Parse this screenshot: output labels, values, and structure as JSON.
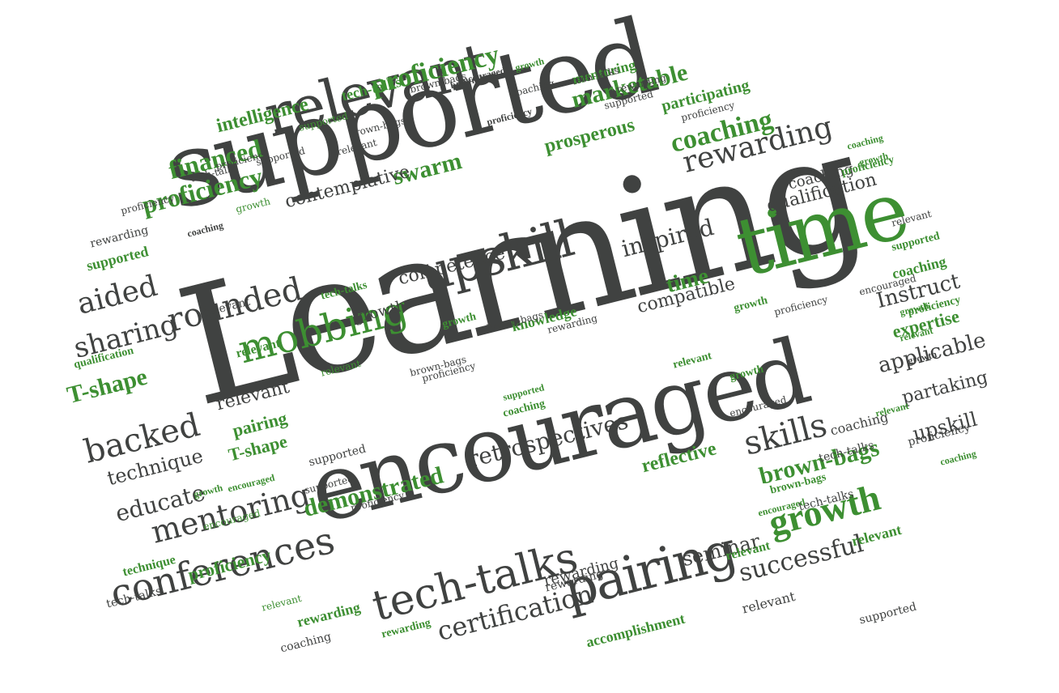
{
  "colors": {
    "dark": "#404241",
    "green": "#3d8f32"
  },
  "words": [
    {
      "text": "Learning",
      "c": "dark"
    },
    {
      "text": "supported",
      "c": "dark"
    },
    {
      "text": "encouraged",
      "c": "dark"
    },
    {
      "text": "relevant",
      "c": "dark"
    },
    {
      "text": "time",
      "c": "green"
    },
    {
      "text": "upskill",
      "c": "dark"
    },
    {
      "text": "pairing",
      "c": "dark"
    },
    {
      "text": "tech-talks",
      "c": "dark"
    },
    {
      "text": "mobbing",
      "c": "green"
    },
    {
      "text": "conferences",
      "c": "dark"
    },
    {
      "text": "rounded",
      "c": "dark"
    },
    {
      "text": "sharing",
      "c": "dark"
    },
    {
      "text": "backed",
      "c": "dark"
    },
    {
      "text": "aided",
      "c": "dark"
    },
    {
      "text": "mentoring",
      "c": "dark"
    },
    {
      "text": "growth",
      "c": "green"
    },
    {
      "text": "brown-bags",
      "c": "green"
    },
    {
      "text": "skills",
      "c": "dark"
    },
    {
      "text": "successful",
      "c": "dark"
    },
    {
      "text": "retrospectives",
      "c": "dark"
    },
    {
      "text": "demonstrated",
      "c": "green"
    },
    {
      "text": "certification",
      "c": "dark"
    },
    {
      "text": "rewarding",
      "c": "dark"
    },
    {
      "text": "proficiency",
      "c": "green"
    },
    {
      "text": "financed",
      "c": "green"
    },
    {
      "text": "proficiency",
      "c": "green"
    },
    {
      "text": "swarm",
      "c": "green"
    },
    {
      "text": "coaching",
      "c": "green"
    },
    {
      "text": "marketable",
      "c": "green"
    },
    {
      "text": "prosperous",
      "c": "green"
    },
    {
      "text": "intelligence",
      "c": "green"
    },
    {
      "text": "contemplative",
      "c": "dark"
    },
    {
      "text": "qualification",
      "c": "dark"
    },
    {
      "text": "inspired",
      "c": "dark"
    },
    {
      "text": "competence",
      "c": "dark"
    },
    {
      "text": "compatible",
      "c": "dark"
    },
    {
      "text": "Instruct",
      "c": "dark"
    },
    {
      "text": "expertise",
      "c": "green"
    },
    {
      "text": "applicable",
      "c": "dark"
    },
    {
      "text": "partaking",
      "c": "dark"
    },
    {
      "text": "upskill",
      "c": "dark"
    },
    {
      "text": "T-shape",
      "c": "green"
    },
    {
      "text": "technique",
      "c": "dark"
    },
    {
      "text": "educate",
      "c": "dark"
    },
    {
      "text": "knowledge",
      "c": "green"
    },
    {
      "text": "reflective",
      "c": "green"
    },
    {
      "text": "seminar",
      "c": "dark"
    },
    {
      "text": "accomplishment",
      "c": "green"
    },
    {
      "text": "proficiency",
      "c": "green"
    },
    {
      "text": "technique",
      "c": "green"
    },
    {
      "text": "relevant",
      "c": "dark"
    },
    {
      "text": "pairing",
      "c": "green"
    },
    {
      "text": "T-shape",
      "c": "green"
    },
    {
      "text": "supported",
      "c": "green"
    },
    {
      "text": "rewarding",
      "c": "dark"
    },
    {
      "text": "mentoring",
      "c": "green"
    },
    {
      "text": "participating",
      "c": "green"
    },
    {
      "text": "tech-talks",
      "c": "green"
    },
    {
      "text": "qualification",
      "c": "green"
    },
    {
      "text": "coaching",
      "c": "dark"
    },
    {
      "text": "proficiency",
      "c": "dark"
    },
    {
      "text": "rewarding",
      "c": "dark"
    },
    {
      "text": "relevant",
      "c": "green"
    },
    {
      "text": "relevant",
      "c": "dark"
    },
    {
      "text": "growth",
      "c": "green"
    },
    {
      "text": "growth",
      "c": "dark"
    },
    {
      "text": "relevant",
      "c": "green"
    },
    {
      "text": "coaching",
      "c": "green"
    },
    {
      "text": "encouraged",
      "c": "dark"
    },
    {
      "text": "growth",
      "c": "green"
    },
    {
      "text": "time",
      "c": "green"
    },
    {
      "text": "rewarding",
      "c": "green"
    },
    {
      "text": "tech-talks",
      "c": "dark"
    },
    {
      "text": "supported",
      "c": "dark"
    },
    {
      "text": "coaching",
      "c": "dark"
    },
    {
      "text": "brown-bags",
      "c": "green"
    },
    {
      "text": "tech-talks",
      "c": "dark"
    },
    {
      "text": "relevant",
      "c": "green"
    },
    {
      "text": "relevant",
      "c": "dark"
    },
    {
      "text": "encouraged",
      "c": "green"
    },
    {
      "text": "relevant",
      "c": "green"
    },
    {
      "text": "tech-talks",
      "c": "green"
    },
    {
      "text": "supported",
      "c": "dark"
    },
    {
      "text": "proficiency",
      "c": "dark"
    },
    {
      "text": "encouraged",
      "c": "green"
    },
    {
      "text": "brown-bags",
      "c": "dark"
    },
    {
      "text": "proficiency",
      "c": "dark"
    },
    {
      "text": "coaching",
      "c": "green"
    },
    {
      "text": "supported",
      "c": "green"
    },
    {
      "text": "rewarding",
      "c": "dark"
    },
    {
      "text": "encouraged",
      "c": "dark"
    },
    {
      "text": "growth",
      "c": "green"
    },
    {
      "text": "supported",
      "c": "green"
    },
    {
      "text": "coaching",
      "c": "dark"
    },
    {
      "text": "rewarding",
      "c": "dark"
    },
    {
      "text": "proficiency",
      "c": "green"
    },
    {
      "text": "coaching",
      "c": "green"
    },
    {
      "text": "growth",
      "c": "green"
    },
    {
      "text": "relevant",
      "c": "dark"
    },
    {
      "text": "growth",
      "c": "green"
    },
    {
      "text": "proficiency",
      "c": "dark"
    },
    {
      "text": "tech-talks",
      "c": "dark"
    },
    {
      "text": "relevant",
      "c": "green"
    },
    {
      "text": "rewarding",
      "c": "green"
    },
    {
      "text": "supported",
      "c": "dark"
    },
    {
      "text": "growth",
      "c": "dark"
    },
    {
      "text": "relevant",
      "c": "green"
    },
    {
      "text": "proficiency",
      "c": "green"
    },
    {
      "text": "coaching",
      "c": "green"
    },
    {
      "text": "growth",
      "c": "green"
    },
    {
      "text": "supported",
      "c": "green"
    },
    {
      "text": "relevant",
      "c": "dark"
    },
    {
      "text": "proficiency",
      "c": "dark"
    },
    {
      "text": "coaching",
      "c": "dark"
    },
    {
      "text": "brown-bags",
      "c": "dark"
    },
    {
      "text": "relevant",
      "c": "green"
    },
    {
      "text": "proficiency",
      "c": "dark"
    },
    {
      "text": "tech-talks",
      "c": "dark"
    },
    {
      "text": "brown-bags",
      "c": "dark"
    },
    {
      "text": "encouraged",
      "c": "dark"
    },
    {
      "text": "relevant",
      "c": "green"
    },
    {
      "text": "growth",
      "c": "green"
    },
    {
      "text": "supported",
      "c": "dark"
    },
    {
      "text": "encouraged",
      "c": "green"
    },
    {
      "text": "tech-talks",
      "c": "dark"
    },
    {
      "text": "proficiency",
      "c": "dark"
    },
    {
      "text": "brown-bags",
      "c": "dark"
    },
    {
      "text": "coaching",
      "c": "dark"
    },
    {
      "text": "proficiency",
      "c": "dark"
    },
    {
      "text": "growth",
      "c": "green"
    },
    {
      "text": "rewarding",
      "c": "dark"
    },
    {
      "text": "supported",
      "c": "dark"
    },
    {
      "text": "brown-bags",
      "c": "dark"
    }
  ]
}
